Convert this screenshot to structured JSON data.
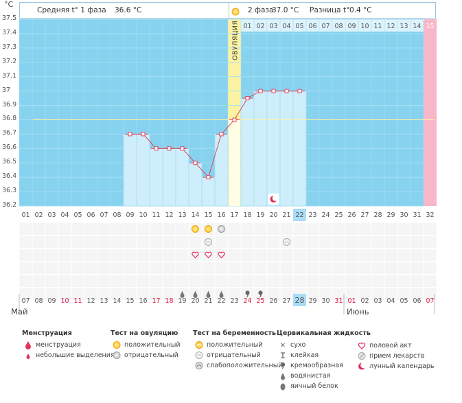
{
  "header": {
    "unit": "°C",
    "phase1_label": "Средняя t° 1 фаза",
    "phase1_value": "36.6 °C",
    "phase2_label": "2 фаза",
    "phase2_value": "37.0 °C",
    "diff_label": "Разница t°",
    "diff_value": "0.4 °C"
  },
  "chart_data": {
    "type": "line",
    "title": "",
    "ylabel": "°C",
    "ylim": [
      36.2,
      37.5
    ],
    "yticks": [
      37.5,
      37.4,
      37.3,
      37.2,
      37.1,
      37.0,
      36.9,
      36.8,
      36.7,
      36.6,
      36.5,
      36.4,
      36.3,
      36.2
    ],
    "ytick_labels": [
      "37.5",
      "37.4",
      "37.3",
      "37.2",
      "37.1",
      "37",
      "36.9",
      "36.8",
      "36.7",
      "36.6",
      "36.5",
      "36.4",
      "36.3",
      "36.2"
    ],
    "cycle_days": [
      "01",
      "02",
      "03",
      "04",
      "05",
      "06",
      "07",
      "08",
      "09",
      "10",
      "11",
      "12",
      "13",
      "14",
      "15",
      "16",
      "17",
      "18",
      "19",
      "20",
      "21",
      "22",
      "23",
      "24",
      "25",
      "26",
      "27",
      "28",
      "29",
      "30",
      "31",
      "32"
    ],
    "today_cycle_day": "22",
    "temperatures": [
      {
        "day": 9,
        "temp": 36.7
      },
      {
        "day": 10,
        "temp": 36.7
      },
      {
        "day": 11,
        "temp": 36.6
      },
      {
        "day": 12,
        "temp": 36.6
      },
      {
        "day": 13,
        "temp": 36.6
      },
      {
        "day": 14,
        "temp": 36.5
      },
      {
        "day": 15,
        "temp": 36.4
      },
      {
        "day": 16,
        "temp": 36.7
      },
      {
        "day": 17,
        "temp": 36.8
      },
      {
        "day": 18,
        "temp": 36.95
      },
      {
        "day": 19,
        "temp": 37.0
      },
      {
        "day": 20,
        "temp": 37.0
      },
      {
        "day": 21,
        "temp": 37.0
      },
      {
        "day": 22,
        "temp": 37.0
      }
    ],
    "coverline": 36.8,
    "ovulation_day": 17,
    "ovulation_label": "ОВУЛЯЦИЯ",
    "luteal_days": [
      "01",
      "02",
      "03",
      "04",
      "05",
      "06",
      "07",
      "08",
      "09",
      "10",
      "11",
      "12",
      "13",
      "14",
      "15"
    ],
    "next_cycle_day": 32,
    "moon_day": 20,
    "colors": {
      "background": "#87d3ef",
      "bar": "#cfeefc",
      "ovulation": "#fbf3a3",
      "pink": "#f8b7c8",
      "line": "#d8465e",
      "coverline": "#fff3a0",
      "today": "#a9dcf5"
    }
  },
  "markers": {
    "ovulation_positive_days": [
      14,
      15
    ],
    "ovulation_negative_days": [
      16
    ],
    "pregnancy_negative_days": [
      15,
      21
    ],
    "intercourse_days": [
      14,
      15,
      16
    ],
    "watery_days": [
      13,
      14,
      15,
      16
    ],
    "creamy_days": [
      18,
      19
    ]
  },
  "calendar": {
    "dates": [
      "07",
      "08",
      "09",
      "10",
      "11",
      "12",
      "13",
      "14",
      "15",
      "16",
      "17",
      "18",
      "19",
      "20",
      "21",
      "22",
      "23",
      "24",
      "25",
      "26",
      "27",
      "28",
      "29",
      "30",
      "31",
      "01",
      "02",
      "03",
      "04",
      "05",
      "06",
      "07"
    ],
    "red_indices": [
      3,
      4,
      10,
      11,
      17,
      18,
      24,
      25,
      31
    ],
    "today_index": 21,
    "month_1": "Май",
    "month_2": "Июнь"
  },
  "legend": {
    "menstruation": {
      "title": "Менструация",
      "items": [
        {
          "label": "менструация",
          "icon": "drop-large-icon"
        },
        {
          "label": "небольшие выделения",
          "icon": "drop-small-icon"
        }
      ]
    },
    "ovulation_test": {
      "title": "Тест на овуляцию",
      "items": [
        {
          "label": "положительный",
          "icon": "test-positive-icon"
        },
        {
          "label": "отрицательный",
          "icon": "test-negative-icon"
        }
      ]
    },
    "pregnancy_test": {
      "title": "Тест на беременность",
      "items": [
        {
          "label": "положительный",
          "icon": "preg-positive-icon"
        },
        {
          "label": "отрицательный",
          "icon": "preg-negative-icon"
        },
        {
          "label": "слабоположительный",
          "icon": "preg-weak-icon"
        }
      ]
    },
    "cervical": {
      "title": "Цервикальная жидкость",
      "items": [
        {
          "label": "сухо",
          "icon": "dry-icon"
        },
        {
          "label": "клейкая",
          "icon": "sticky-icon"
        },
        {
          "label": "кремообразная",
          "icon": "creamy-icon"
        },
        {
          "label": "водянистая",
          "icon": "watery-icon"
        },
        {
          "label": "яичный белок",
          "icon": "egg-white-icon"
        }
      ]
    },
    "other": {
      "items": [
        {
          "label": "половой акт",
          "icon": "heart-icon"
        },
        {
          "label": "прием лекарств",
          "icon": "pill-icon"
        },
        {
          "label": "лунный календарь",
          "icon": "moon-icon"
        }
      ]
    }
  }
}
